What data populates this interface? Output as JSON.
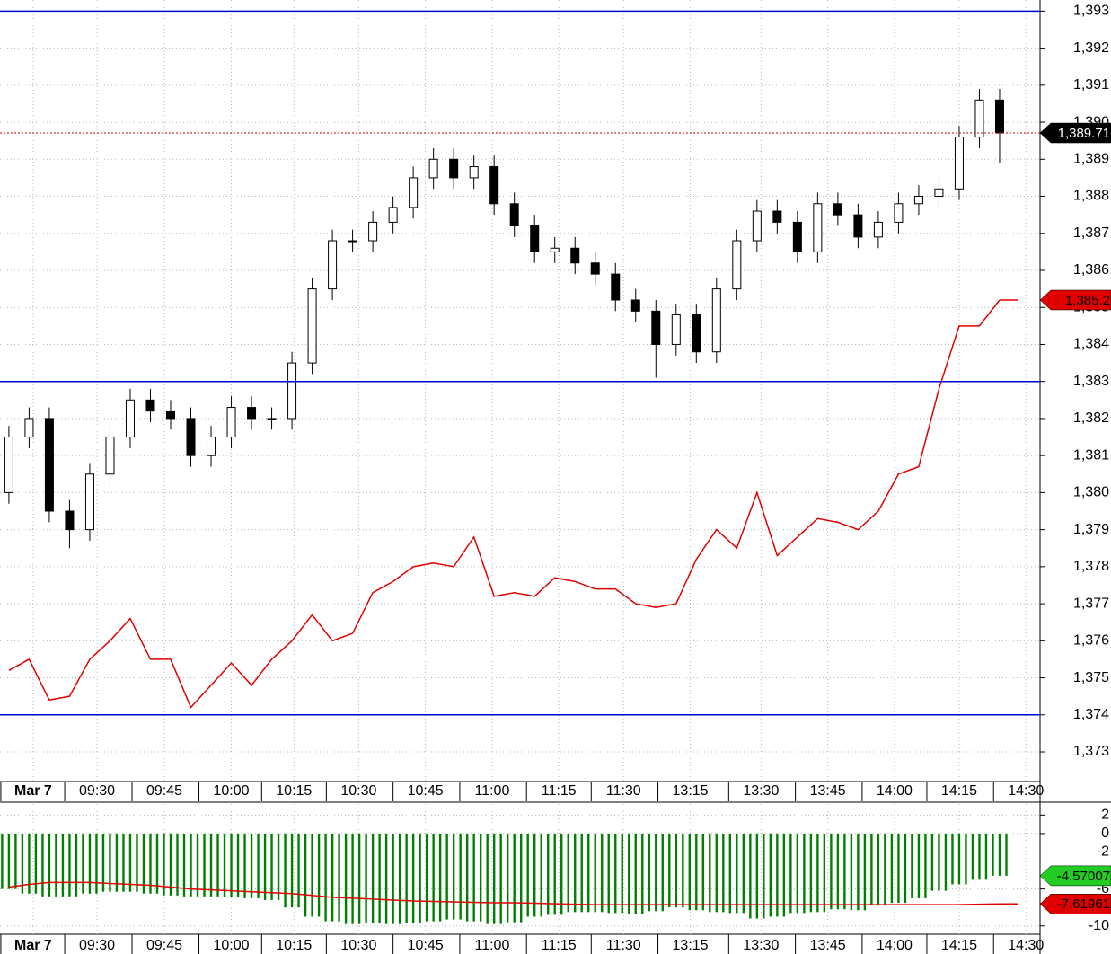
{
  "chart_data": [
    {
      "type": "candlestick",
      "xlim": [
        -0.44,
        51
      ],
      "xticks": [
        {
          "value": 1.2,
          "label": "Mar 7"
        },
        {
          "value": 4.36,
          "label": "09:30"
        },
        {
          "value": 7.69,
          "label": "09:45"
        },
        {
          "value": 11.0,
          "label": "10:00"
        },
        {
          "value": 14.1,
          "label": "10:15"
        },
        {
          "value": 17.3,
          "label": "10:30"
        },
        {
          "value": 20.6,
          "label": "10:45"
        },
        {
          "value": 23.9,
          "label": "11:00"
        },
        {
          "value": 27.2,
          "label": "11:15"
        },
        {
          "value": 30.4,
          "label": "11:30"
        },
        {
          "value": 33.7,
          "label": "13:15"
        },
        {
          "value": 37.2,
          "label": "13:30"
        },
        {
          "value": 40.5,
          "label": "13:45"
        },
        {
          "value": 43.8,
          "label": "14:00"
        },
        {
          "value": 47.0,
          "label": "14:15"
        },
        {
          "value": 50.3,
          "label": "14:30"
        }
      ],
      "ylim": [
        1372.2,
        1393.3
      ],
      "yticks": [
        {
          "value": 1373,
          "label": "1,373"
        },
        {
          "value": 1374,
          "label": "1,374"
        },
        {
          "value": 1375,
          "label": "1,375"
        },
        {
          "value": 1376,
          "label": "1,376"
        },
        {
          "value": 1377,
          "label": "1,377"
        },
        {
          "value": 1378,
          "label": "1,378"
        },
        {
          "value": 1379,
          "label": "1,379"
        },
        {
          "value": 1380,
          "label": "1,380"
        },
        {
          "value": 1381,
          "label": "1,381"
        },
        {
          "value": 1382,
          "label": "1,382"
        },
        {
          "value": 1383,
          "label": "1,383"
        },
        {
          "value": 1384,
          "label": "1,384"
        },
        {
          "value": 1385,
          "label": "1,385"
        },
        {
          "value": 1386,
          "label": "1,386"
        },
        {
          "value": 1387,
          "label": "1,387"
        },
        {
          "value": 1388,
          "label": "1,388"
        },
        {
          "value": 1389,
          "label": "1,389"
        },
        {
          "value": 1390,
          "label": "1,390"
        },
        {
          "value": 1391,
          "label": "1,391"
        },
        {
          "value": 1392,
          "label": "1,392"
        },
        {
          "value": 1393,
          "label": "1,393"
        }
      ],
      "grid": true,
      "hlines": [
        {
          "value": 1393,
          "color": "#0000cc"
        },
        {
          "value": 1383,
          "color": "#0000cc"
        },
        {
          "value": 1374,
          "color": "#0000cc"
        }
      ],
      "series": [
        {
          "type": "candlestick",
          "color": "#000000",
          "marker_label": "1,389.71",
          "open": [
            1380.0,
            1381.5,
            1382.0,
            1379.5,
            1379.0,
            1380.5,
            1381.5,
            1382.5,
            1382.2,
            1382.0,
            1381.0,
            1381.5,
            1382.3,
            1382.0,
            1382.0,
            1383.5,
            1385.5,
            1386.8,
            1386.8,
            1387.3,
            1387.7,
            1388.5,
            1389.0,
            1388.5,
            1388.8,
            1387.8,
            1387.2,
            1386.5,
            1386.6,
            1386.2,
            1385.9,
            1385.2,
            1384.9,
            1384.0,
            1384.8,
            1383.8,
            1385.5,
            1386.8,
            1387.6,
            1387.3,
            1386.5,
            1387.8,
            1387.5,
            1386.9,
            1387.3,
            1387.8,
            1388.0,
            1388.2,
            1389.6,
            1390.6
          ],
          "high": [
            1381.8,
            1382.3,
            1382.3,
            1379.8,
            1380.8,
            1381.8,
            1382.8,
            1382.8,
            1382.5,
            1382.3,
            1381.8,
            1382.6,
            1382.6,
            1382.3,
            1383.8,
            1385.8,
            1387.1,
            1387.1,
            1387.6,
            1388.0,
            1388.8,
            1389.3,
            1389.3,
            1389.1,
            1389.1,
            1388.1,
            1387.5,
            1386.9,
            1386.9,
            1386.5,
            1386.2,
            1385.5,
            1385.2,
            1385.1,
            1385.1,
            1385.8,
            1387.1,
            1387.9,
            1387.9,
            1387.6,
            1388.1,
            1388.1,
            1387.8,
            1387.6,
            1388.1,
            1388.3,
            1388.5,
            1389.9,
            1390.9,
            1390.9
          ],
          "low": [
            1379.7,
            1381.2,
            1379.2,
            1378.5,
            1378.7,
            1380.2,
            1381.2,
            1381.9,
            1381.7,
            1380.7,
            1380.7,
            1381.2,
            1381.7,
            1381.7,
            1381.7,
            1383.2,
            1385.2,
            1386.5,
            1386.5,
            1387.0,
            1387.4,
            1388.2,
            1388.2,
            1388.2,
            1387.5,
            1386.9,
            1386.2,
            1386.2,
            1385.9,
            1385.6,
            1384.9,
            1384.6,
            1383.1,
            1383.7,
            1383.5,
            1383.5,
            1385.2,
            1386.5,
            1387.0,
            1386.2,
            1386.2,
            1387.2,
            1386.6,
            1386.6,
            1387.0,
            1387.5,
            1387.7,
            1387.9,
            1389.3,
            1388.9
          ],
          "close": [
            1381.5,
            1382.0,
            1379.5,
            1379.0,
            1380.5,
            1381.5,
            1382.5,
            1382.2,
            1382.0,
            1381.0,
            1381.5,
            1382.3,
            1382.0,
            1382.0,
            1383.5,
            1385.5,
            1386.8,
            1386.8,
            1387.3,
            1387.7,
            1388.5,
            1389.0,
            1388.5,
            1388.8,
            1387.8,
            1387.2,
            1386.5,
            1386.6,
            1386.2,
            1385.9,
            1385.2,
            1384.9,
            1384.0,
            1384.8,
            1383.8,
            1385.5,
            1386.8,
            1387.6,
            1387.3,
            1386.5,
            1387.8,
            1387.5,
            1386.9,
            1387.3,
            1387.8,
            1388.0,
            1388.2,
            1389.6,
            1390.6,
            1389.71
          ]
        },
        {
          "type": "line",
          "color": "#e00000",
          "marker_label": "1,385.2",
          "values": [
            1375.2,
            1375.5,
            1374.4,
            1374.5,
            1375.5,
            1376.0,
            1376.6,
            1375.5,
            1375.5,
            1374.2,
            1374.8,
            1375.4,
            1374.8,
            1375.5,
            1376.0,
            1376.7,
            1376.0,
            1376.2,
            1377.3,
            1377.6,
            1378.0,
            1378.1,
            1378.0,
            1378.8,
            1377.2,
            1377.3,
            1377.2,
            1377.7,
            1377.6,
            1377.4,
            1377.4,
            1377.0,
            1376.9,
            1377.0,
            1378.2,
            1379.0,
            1378.5,
            1380.0,
            1378.3,
            1378.8,
            1379.3,
            1379.2,
            1379.0,
            1379.5,
            1380.5,
            1380.7,
            1382.8,
            1384.5,
            1384.5,
            1385.2
          ]
        }
      ]
    },
    {
      "type": "histogram",
      "xlim": [
        -0.44,
        51
      ],
      "xticks": [
        {
          "value": 1.2,
          "label": "Mar 7"
        },
        {
          "value": 4.36,
          "label": "09:30"
        },
        {
          "value": 7.69,
          "label": "09:45"
        },
        {
          "value": 11.0,
          "label": "10:00"
        },
        {
          "value": 14.1,
          "label": "10:15"
        },
        {
          "value": 17.3,
          "label": "10:30"
        },
        {
          "value": 20.6,
          "label": "10:45"
        },
        {
          "value": 23.9,
          "label": "11:00"
        },
        {
          "value": 27.2,
          "label": "11:15"
        },
        {
          "value": 30.4,
          "label": "11:30"
        },
        {
          "value": 33.7,
          "label": "13:15"
        },
        {
          "value": 37.2,
          "label": "13:30"
        },
        {
          "value": 40.5,
          "label": "13:45"
        },
        {
          "value": 43.8,
          "label": "14:00"
        },
        {
          "value": 47.0,
          "label": "14:15"
        },
        {
          "value": 50.3,
          "label": "14:30"
        }
      ],
      "ylim": [
        -10.9,
        3.2
      ],
      "yticks": [
        2,
        0,
        -2,
        -6,
        -10
      ],
      "grid": true,
      "series": [
        {
          "type": "histogram",
          "color": "#008000",
          "marker_label": "-4.57007",
          "values": [
            -6.0,
            -6.5,
            -6.8,
            -6.8,
            -6.5,
            -6.3,
            -6.3,
            -6.5,
            -6.7,
            -6.8,
            -6.8,
            -6.9,
            -7.0,
            -7.2,
            -8.0,
            -9.0,
            -9.5,
            -9.8,
            -9.7,
            -9.8,
            -9.7,
            -9.5,
            -9.3,
            -9.5,
            -9.8,
            -9.6,
            -9.0,
            -8.8,
            -8.5,
            -8.5,
            -8.6,
            -8.7,
            -8.4,
            -8.0,
            -8.3,
            -8.5,
            -8.6,
            -9.2,
            -9.0,
            -8.6,
            -8.5,
            -8.2,
            -8.3,
            -7.8,
            -7.5,
            -7.0,
            -6.2,
            -5.5,
            -5.0,
            -4.57007
          ]
        },
        {
          "type": "line",
          "color": "#e00000",
          "marker_label": "-7.61961",
          "values": [
            -5.8,
            -5.5,
            -5.3,
            -5.3,
            -5.3,
            -5.4,
            -5.5,
            -5.6,
            -5.8,
            -6.0,
            -6.1,
            -6.2,
            -6.3,
            -6.4,
            -6.5,
            -6.7,
            -6.9,
            -7.0,
            -7.1,
            -7.2,
            -7.3,
            -7.35,
            -7.4,
            -7.45,
            -7.5,
            -7.5,
            -7.55,
            -7.6,
            -7.65,
            -7.7,
            -7.7,
            -7.7,
            -7.7,
            -7.7,
            -7.7,
            -7.7,
            -7.7,
            -7.7,
            -7.7,
            -7.7,
            -7.7,
            -7.7,
            -7.7,
            -7.7,
            -7.7,
            -7.7,
            -7.7,
            -7.7,
            -7.65,
            -7.61961
          ]
        }
      ]
    }
  ]
}
